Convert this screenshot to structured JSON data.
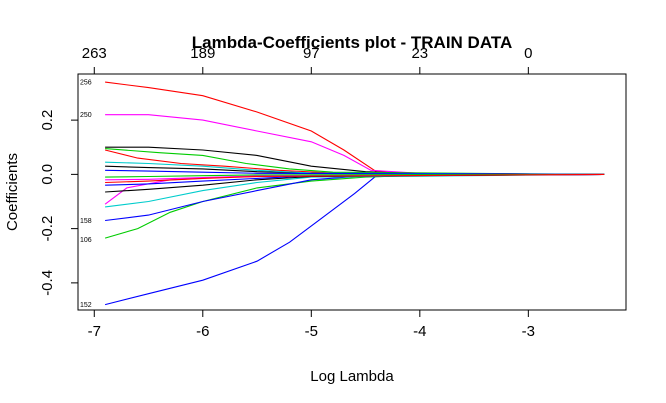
{
  "chart_data": {
    "type": "line",
    "title": "Lambda-Coefficients plot - TRAIN DATA",
    "xlabel": "Log Lambda",
    "ylabel": "Coefficients",
    "xlim": [
      -7.15,
      -2.1
    ],
    "ylim": [
      -0.5,
      0.37
    ],
    "x_ticks": [
      {
        "value": -7,
        "label": "-7"
      },
      {
        "value": -6,
        "label": "-6"
      },
      {
        "value": -5,
        "label": "-5"
      },
      {
        "value": -4,
        "label": "-4"
      },
      {
        "value": -3,
        "label": "-3"
      }
    ],
    "y_ticks": [
      {
        "value": -0.4,
        "label": "-0.4"
      },
      {
        "value": -0.2,
        "label": "-0.2"
      },
      {
        "value": 0.0,
        "label": "0.0"
      },
      {
        "value": 0.2,
        "label": "0.2"
      }
    ],
    "top_ticks": [
      {
        "value": -7,
        "label": "263"
      },
      {
        "value": -6,
        "label": "189"
      },
      {
        "value": -5,
        "label": "97"
      },
      {
        "value": -4,
        "label": "23"
      },
      {
        "value": -3,
        "label": "0"
      }
    ],
    "coef_labels": [
      {
        "y": 0.34,
        "label": "256"
      },
      {
        "y": 0.22,
        "label": "250"
      },
      {
        "y": -0.17,
        "label": "158"
      },
      {
        "y": -0.24,
        "label": "106"
      },
      {
        "y": -0.48,
        "label": "152"
      }
    ],
    "series": [
      {
        "name": "256",
        "color": "#ff0000",
        "points": [
          [
            -6.9,
            0.34
          ],
          [
            -6.5,
            0.32
          ],
          [
            -6.0,
            0.29
          ],
          [
            -5.5,
            0.23
          ],
          [
            -5.0,
            0.16
          ],
          [
            -4.7,
            0.09
          ],
          [
            -4.4,
            0.01
          ],
          [
            -4.0,
            0.004
          ],
          [
            -3.5,
            0.001
          ],
          [
            -2.3,
            0.0
          ]
        ]
      },
      {
        "name": "250",
        "color": "#ff00ff",
        "points": [
          [
            -6.9,
            0.22
          ],
          [
            -6.5,
            0.22
          ],
          [
            -6.0,
            0.2
          ],
          [
            -5.5,
            0.16
          ],
          [
            -5.0,
            0.12
          ],
          [
            -4.7,
            0.07
          ],
          [
            -4.45,
            0.015
          ],
          [
            -4.0,
            0.004
          ],
          [
            -3.5,
            0.001
          ],
          [
            -2.3,
            0.0
          ]
        ]
      },
      {
        "name": "152",
        "color": "#0000ff",
        "points": [
          [
            -6.9,
            -0.48
          ],
          [
            -6.5,
            -0.44
          ],
          [
            -6.0,
            -0.39
          ],
          [
            -5.5,
            -0.32
          ],
          [
            -5.2,
            -0.25
          ],
          [
            -4.9,
            -0.16
          ],
          [
            -4.6,
            -0.07
          ],
          [
            -4.4,
            -0.005
          ],
          [
            -4.0,
            -0.002
          ],
          [
            -2.3,
            0.0
          ]
        ]
      },
      {
        "name": "106",
        "color": "#00cc00",
        "points": [
          [
            -6.9,
            -0.235
          ],
          [
            -6.6,
            -0.2
          ],
          [
            -6.3,
            -0.14
          ],
          [
            -6.0,
            -0.1
          ],
          [
            -5.5,
            -0.05
          ],
          [
            -5.0,
            -0.025
          ],
          [
            -4.5,
            -0.01
          ],
          [
            -4.0,
            -0.003
          ],
          [
            -2.3,
            0.0
          ]
        ]
      },
      {
        "name": "158",
        "color": "#0000ff",
        "points": [
          [
            -6.9,
            -0.17
          ],
          [
            -6.5,
            -0.15
          ],
          [
            -6.0,
            -0.1
          ],
          [
            -5.5,
            -0.06
          ],
          [
            -5.0,
            -0.02
          ],
          [
            -4.5,
            -0.005
          ],
          [
            -2.3,
            0.0
          ]
        ]
      },
      {
        "name": "s6",
        "color": "#00cccc",
        "points": [
          [
            -6.9,
            -0.12
          ],
          [
            -6.5,
            -0.1
          ],
          [
            -6.0,
            -0.06
          ],
          [
            -5.5,
            -0.03
          ],
          [
            -5.0,
            -0.01
          ],
          [
            -2.3,
            0.0
          ]
        ]
      },
      {
        "name": "s7",
        "color": "#ff00ff",
        "points": [
          [
            -6.9,
            -0.11
          ],
          [
            -6.7,
            -0.05
          ],
          [
            -6.3,
            -0.02
          ],
          [
            -5.8,
            -0.01
          ],
          [
            -5.0,
            -0.005
          ],
          [
            -2.3,
            0.0
          ]
        ]
      },
      {
        "name": "s8",
        "color": "#000000",
        "points": [
          [
            -6.9,
            0.1
          ],
          [
            -6.5,
            0.1
          ],
          [
            -6.0,
            0.09
          ],
          [
            -5.5,
            0.07
          ],
          [
            -5.0,
            0.03
          ],
          [
            -4.5,
            0.01
          ],
          [
            -4.0,
            0.002
          ],
          [
            -2.3,
            0.0
          ]
        ]
      },
      {
        "name": "s9",
        "color": "#00cc00",
        "points": [
          [
            -6.9,
            0.095
          ],
          [
            -6.4,
            0.08
          ],
          [
            -6.0,
            0.07
          ],
          [
            -5.6,
            0.04
          ],
          [
            -5.2,
            0.02
          ],
          [
            -4.8,
            0.008
          ],
          [
            -2.3,
            0.0
          ]
        ]
      },
      {
        "name": "s10",
        "color": "#ff0000",
        "points": [
          [
            -6.9,
            0.09
          ],
          [
            -6.6,
            0.06
          ],
          [
            -6.2,
            0.04
          ],
          [
            -5.8,
            0.03
          ],
          [
            -5.3,
            0.015
          ],
          [
            -4.8,
            0.005
          ],
          [
            -2.3,
            0.0
          ]
        ]
      },
      {
        "name": "s11",
        "color": "#000000",
        "points": [
          [
            -6.9,
            -0.065
          ],
          [
            -6.5,
            -0.055
          ],
          [
            -6.0,
            -0.04
          ],
          [
            -5.5,
            -0.02
          ],
          [
            -5.0,
            -0.008
          ],
          [
            -2.3,
            0.0
          ]
        ]
      },
      {
        "name": "s12",
        "color": "#0000ff",
        "points": [
          [
            -6.9,
            -0.04
          ],
          [
            -6.5,
            -0.035
          ],
          [
            -6.0,
            -0.025
          ],
          [
            -5.5,
            -0.015
          ],
          [
            -5.0,
            -0.005
          ],
          [
            -2.3,
            0.0
          ]
        ]
      },
      {
        "name": "s13",
        "color": "#000000",
        "points": [
          [
            -6.9,
            0.03
          ],
          [
            -6.5,
            0.025
          ],
          [
            -6.0,
            0.02
          ],
          [
            -5.5,
            0.01
          ],
          [
            -5.0,
            0.005
          ],
          [
            -2.3,
            0.0
          ]
        ]
      },
      {
        "name": "s14",
        "color": "#00cccc",
        "points": [
          [
            -6.9,
            0.045
          ],
          [
            -6.5,
            0.04
          ],
          [
            -6.0,
            0.03
          ],
          [
            -5.5,
            0.015
          ],
          [
            -5.0,
            0.005
          ],
          [
            -2.3,
            0.0
          ]
        ]
      },
      {
        "name": "s15",
        "color": "#ff00ff",
        "points": [
          [
            -6.9,
            -0.02
          ],
          [
            -6.5,
            -0.018
          ],
          [
            -6.0,
            -0.012
          ],
          [
            -5.5,
            -0.006
          ],
          [
            -2.3,
            0.0
          ]
        ]
      },
      {
        "name": "s16",
        "color": "#0000ff",
        "points": [
          [
            -6.9,
            0.015
          ],
          [
            -6.5,
            0.012
          ],
          [
            -6.0,
            0.008
          ],
          [
            -5.5,
            0.004
          ],
          [
            -2.3,
            0.0
          ]
        ]
      },
      {
        "name": "s17",
        "color": "#00cc00",
        "points": [
          [
            -6.9,
            -0.01
          ],
          [
            -6.5,
            -0.008
          ],
          [
            -6.0,
            -0.005
          ],
          [
            -5.5,
            -0.002
          ],
          [
            -2.3,
            0.0
          ]
        ]
      },
      {
        "name": "s18",
        "color": "#ff0000",
        "points": [
          [
            -6.9,
            -0.03
          ],
          [
            -6.5,
            -0.025
          ],
          [
            -6.0,
            -0.015
          ],
          [
            -5.5,
            -0.008
          ],
          [
            -2.3,
            0.0
          ]
        ]
      }
    ]
  }
}
